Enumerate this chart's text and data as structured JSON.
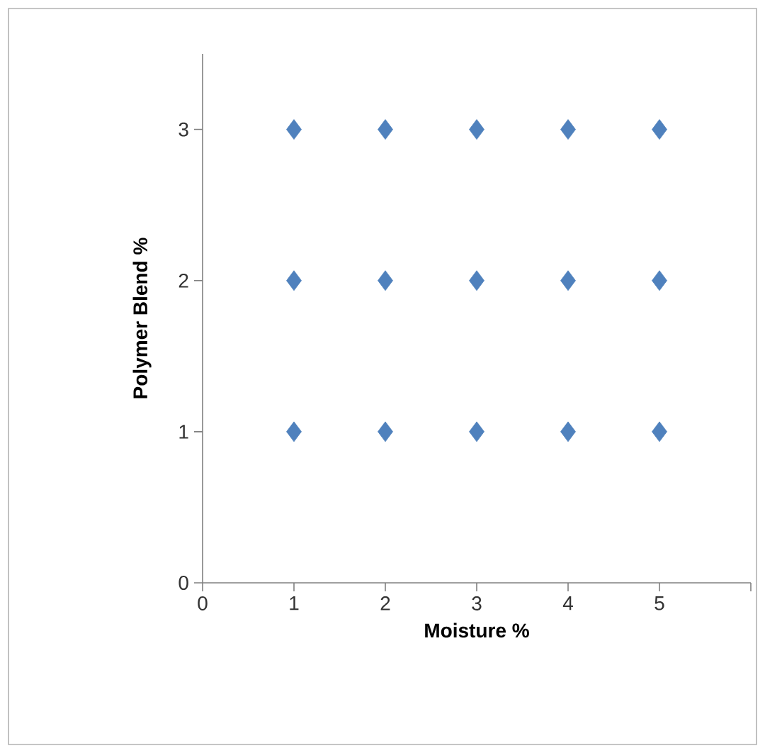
{
  "chart_data": {
    "type": "scatter",
    "xlabel": "Moisture %",
    "ylabel": "Polymer Blend %",
    "x": [
      1,
      2,
      3,
      4,
      5,
      1,
      2,
      3,
      4,
      5,
      1,
      2,
      3,
      4,
      5
    ],
    "series": [
      {
        "color": "#4f81bd",
        "values": [
          1,
          1,
          1,
          1,
          1,
          2,
          2,
          2,
          2,
          2,
          3,
          3,
          3,
          3,
          3
        ]
      }
    ],
    "xlim": [
      0,
      6
    ],
    "xticks": [
      0,
      1,
      2,
      3,
      4,
      5,
      {
        "value": 6,
        "label": null
      }
    ],
    "ylim": [
      0,
      3.5
    ],
    "yticks": [
      0,
      1,
      2,
      3
    ],
    "marker": "diamond"
  }
}
